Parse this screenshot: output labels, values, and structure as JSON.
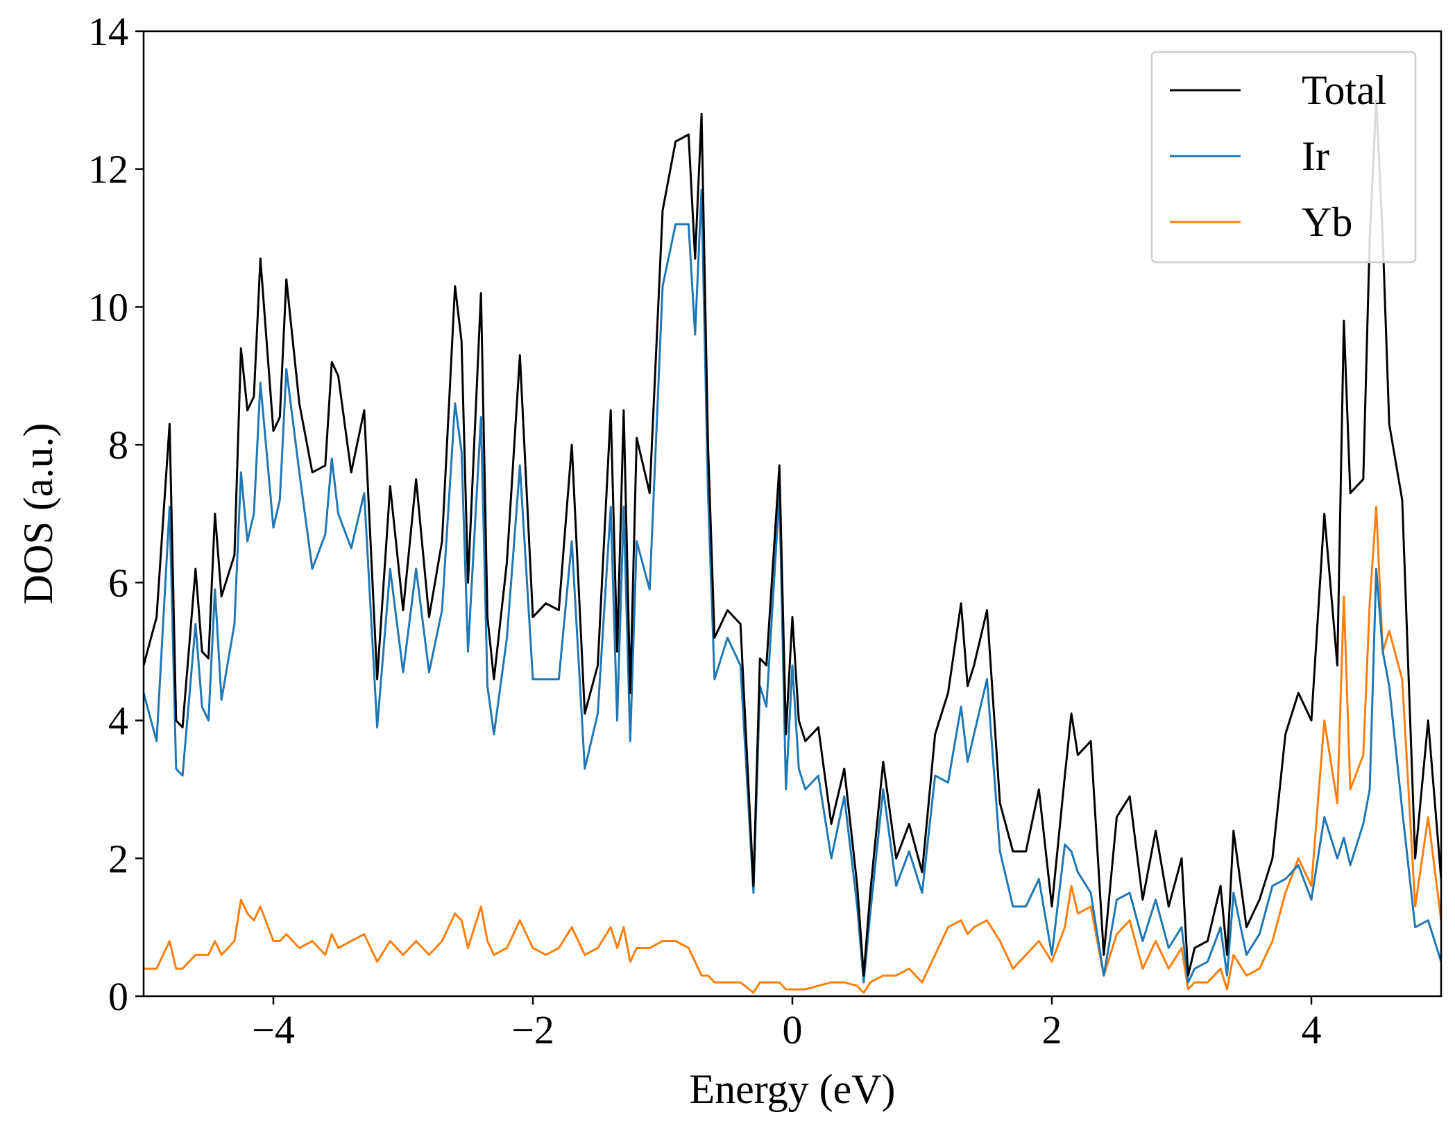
{
  "chart_data": {
    "type": "line",
    "title": "",
    "xlabel": "Energy (eV)",
    "ylabel": "DOS (a.u.)",
    "xlim": [
      -5,
      5
    ],
    "ylim": [
      0,
      14
    ],
    "xticks": [
      -4,
      -2,
      0,
      2,
      4
    ],
    "xtick_labels": [
      "−4",
      "−2",
      "0",
      "2",
      "4"
    ],
    "yticks": [
      0,
      2,
      4,
      6,
      8,
      10,
      12,
      14
    ],
    "ytick_labels": [
      "0",
      "2",
      "4",
      "6",
      "8",
      "10",
      "12",
      "14"
    ],
    "grid": false,
    "legend_position": "top-right",
    "x": [
      -5.0,
      -4.9,
      -4.8,
      -4.75,
      -4.7,
      -4.6,
      -4.55,
      -4.5,
      -4.45,
      -4.4,
      -4.3,
      -4.25,
      -4.2,
      -4.15,
      -4.1,
      -4.0,
      -3.95,
      -3.9,
      -3.8,
      -3.7,
      -3.6,
      -3.55,
      -3.5,
      -3.4,
      -3.3,
      -3.2,
      -3.1,
      -3.0,
      -2.9,
      -2.8,
      -2.7,
      -2.6,
      -2.55,
      -2.5,
      -2.4,
      -2.35,
      -2.3,
      -2.2,
      -2.1,
      -2.0,
      -1.9,
      -1.8,
      -1.7,
      -1.6,
      -1.5,
      -1.4,
      -1.35,
      -1.3,
      -1.25,
      -1.2,
      -1.1,
      -1.0,
      -0.9,
      -0.8,
      -0.75,
      -0.7,
      -0.65,
      -0.6,
      -0.5,
      -0.4,
      -0.3,
      -0.25,
      -0.2,
      -0.1,
      -0.05,
      0.0,
      0.05,
      0.1,
      0.2,
      0.3,
      0.4,
      0.5,
      0.55,
      0.6,
      0.7,
      0.8,
      0.9,
      1.0,
      1.1,
      1.2,
      1.3,
      1.35,
      1.4,
      1.5,
      1.6,
      1.7,
      1.8,
      1.9,
      2.0,
      2.1,
      2.15,
      2.2,
      2.3,
      2.4,
      2.5,
      2.6,
      2.7,
      2.8,
      2.9,
      3.0,
      3.05,
      3.1,
      3.2,
      3.3,
      3.35,
      3.4,
      3.5,
      3.6,
      3.7,
      3.8,
      3.9,
      4.0,
      4.1,
      4.2,
      4.25,
      4.3,
      4.4,
      4.45,
      4.5,
      4.55,
      4.6,
      4.7,
      4.8,
      4.9,
      5.0
    ],
    "series": [
      {
        "name": "Total",
        "color": "#000000",
        "values": [
          4.8,
          5.5,
          8.3,
          4.0,
          3.9,
          6.2,
          5.0,
          4.9,
          7.0,
          5.8,
          6.4,
          9.4,
          8.5,
          8.7,
          10.7,
          8.2,
          8.4,
          10.4,
          8.6,
          7.6,
          7.7,
          9.2,
          9.0,
          7.6,
          8.5,
          4.6,
          7.4,
          5.6,
          7.5,
          5.5,
          6.6,
          10.3,
          9.5,
          6.0,
          10.2,
          5.5,
          4.6,
          6.3,
          9.3,
          5.5,
          5.7,
          5.6,
          8.0,
          4.1,
          4.8,
          8.5,
          5.0,
          8.5,
          4.4,
          8.1,
          7.3,
          11.4,
          12.4,
          12.5,
          10.7,
          12.8,
          8.0,
          5.2,
          5.6,
          5.4,
          1.6,
          4.9,
          4.8,
          7.7,
          3.8,
          5.5,
          4.0,
          3.7,
          3.9,
          2.5,
          3.3,
          1.6,
          0.3,
          1.5,
          3.4,
          2.0,
          2.5,
          1.8,
          3.8,
          4.4,
          5.7,
          4.5,
          4.8,
          5.6,
          2.8,
          2.1,
          2.1,
          3.0,
          1.3,
          3.2,
          4.1,
          3.5,
          3.7,
          0.6,
          2.6,
          2.9,
          1.4,
          2.4,
          1.3,
          2.0,
          0.3,
          0.7,
          0.8,
          1.6,
          0.6,
          2.4,
          1.0,
          1.4,
          2.0,
          3.8,
          4.4,
          4.0,
          7.0,
          4.8,
          9.8,
          7.3,
          7.5,
          11.0,
          13.0,
          11.0,
          8.3,
          7.2,
          2.0,
          4.0,
          1.7
        ]
      },
      {
        "name": "Ir",
        "color": "#1f77b4",
        "values": [
          4.4,
          3.7,
          7.1,
          3.3,
          3.2,
          5.4,
          4.2,
          4.0,
          5.9,
          4.3,
          5.4,
          7.6,
          6.6,
          7.0,
          8.9,
          6.8,
          7.2,
          9.1,
          7.6,
          6.2,
          6.7,
          7.8,
          7.0,
          6.5,
          7.3,
          3.9,
          6.2,
          4.7,
          6.2,
          4.7,
          5.6,
          8.6,
          7.9,
          5.0,
          8.4,
          4.5,
          3.8,
          5.2,
          7.7,
          4.6,
          4.6,
          4.6,
          6.6,
          3.3,
          4.1,
          7.1,
          4.0,
          7.1,
          3.7,
          6.6,
          5.9,
          10.3,
          11.2,
          11.2,
          9.6,
          11.7,
          7.3,
          4.6,
          5.2,
          4.8,
          1.5,
          4.5,
          4.2,
          7.3,
          3.0,
          4.8,
          3.3,
          3.0,
          3.2,
          2.0,
          2.9,
          1.3,
          0.2,
          1.2,
          3.0,
          1.6,
          2.1,
          1.5,
          3.2,
          3.1,
          4.2,
          3.4,
          3.8,
          4.6,
          2.1,
          1.3,
          1.3,
          1.7,
          0.6,
          2.2,
          2.1,
          1.8,
          1.5,
          0.3,
          1.4,
          1.5,
          0.8,
          1.4,
          0.7,
          1.0,
          0.2,
          0.4,
          0.5,
          1.0,
          0.3,
          1.5,
          0.6,
          0.9,
          1.6,
          1.7,
          1.9,
          1.4,
          2.6,
          2.0,
          2.3,
          1.9,
          2.5,
          3.0,
          6.2,
          5.0,
          4.5,
          2.7,
          1.0,
          1.1,
          0.5
        ]
      },
      {
        "name": "Yb",
        "color": "#ff7f0e",
        "values": [
          0.4,
          0.4,
          0.8,
          0.4,
          0.4,
          0.6,
          0.6,
          0.6,
          0.8,
          0.6,
          0.8,
          1.4,
          1.2,
          1.1,
          1.3,
          0.8,
          0.8,
          0.9,
          0.7,
          0.8,
          0.6,
          0.9,
          0.7,
          0.8,
          0.9,
          0.5,
          0.8,
          0.6,
          0.8,
          0.6,
          0.8,
          1.2,
          1.1,
          0.7,
          1.3,
          0.8,
          0.6,
          0.7,
          1.1,
          0.7,
          0.6,
          0.7,
          1.0,
          0.6,
          0.7,
          1.0,
          0.7,
          1.0,
          0.5,
          0.7,
          0.7,
          0.8,
          0.8,
          0.7,
          0.5,
          0.3,
          0.3,
          0.2,
          0.2,
          0.2,
          0.05,
          0.2,
          0.2,
          0.2,
          0.1,
          0.1,
          0.1,
          0.1,
          0.15,
          0.2,
          0.2,
          0.15,
          0.05,
          0.2,
          0.3,
          0.3,
          0.4,
          0.2,
          0.6,
          1.0,
          1.1,
          0.9,
          1.0,
          1.1,
          0.8,
          0.4,
          0.6,
          0.8,
          0.5,
          1.0,
          1.6,
          1.2,
          1.3,
          0.3,
          0.9,
          1.1,
          0.4,
          0.8,
          0.4,
          0.7,
          0.1,
          0.2,
          0.2,
          0.4,
          0.1,
          0.6,
          0.3,
          0.4,
          0.8,
          1.5,
          2.0,
          1.6,
          4.0,
          2.8,
          5.8,
          3.0,
          3.5,
          5.7,
          7.1,
          5.0,
          5.3,
          4.6,
          1.3,
          2.6,
          1.1
        ]
      }
    ]
  }
}
